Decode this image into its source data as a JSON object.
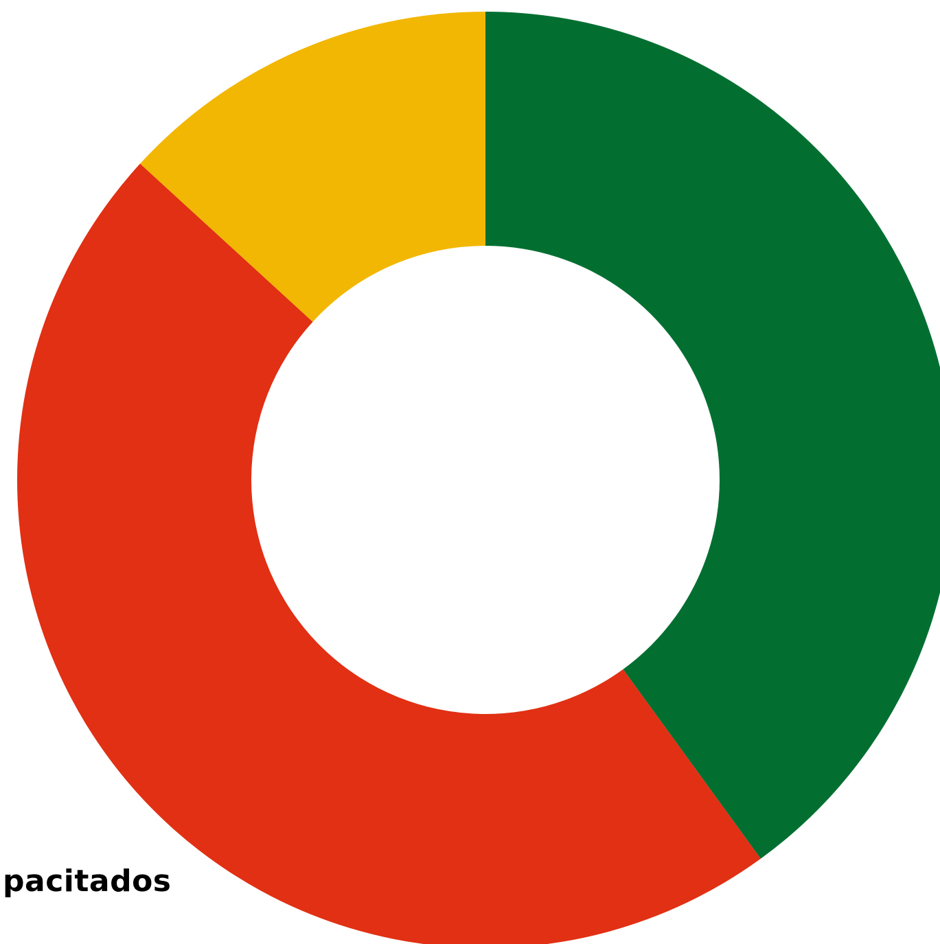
{
  "chart_data": {
    "type": "pie",
    "variant": "donut",
    "title": "",
    "slices": [
      {
        "value": 40.0,
        "color": "#026f31"
      },
      {
        "value": 46.8,
        "color": "#e13014"
      },
      {
        "value": 13.2,
        "color": "#f2b702"
      }
    ],
    "start_angle_deg": 0,
    "direction": "clockwise",
    "legend": "none"
  },
  "labels": {
    "fragment": "pacitados"
  }
}
